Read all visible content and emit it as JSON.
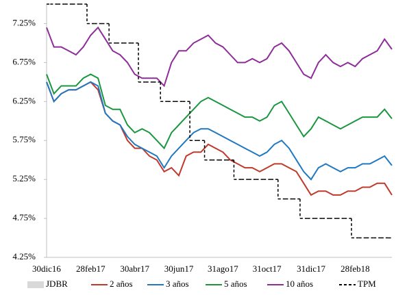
{
  "chart_data": {
    "type": "line",
    "categories": [
      "30dic16",
      null,
      null,
      null,
      null,
      null,
      "28feb17",
      null,
      null,
      null,
      null,
      null,
      "30abr17",
      null,
      null,
      null,
      null,
      null,
      "30jun17",
      null,
      null,
      null,
      null,
      null,
      "31ago17",
      null,
      null,
      null,
      null,
      null,
      "31oct17",
      null,
      null,
      null,
      null,
      null,
      "31dic17",
      null,
      null,
      null,
      null,
      null,
      "28feb18",
      null,
      null,
      null,
      null,
      null
    ],
    "ylim": [
      4.25,
      7.5
    ],
    "yticks": [
      {
        "value": 4.25,
        "label": "4.25%"
      },
      {
        "value": 4.75,
        "label": "4.75%"
      },
      {
        "value": 5.25,
        "label": "5.25%"
      },
      {
        "value": 5.75,
        "label": "5.75%"
      },
      {
        "value": 6.25,
        "label": "6.25%"
      },
      {
        "value": 6.75,
        "label": "6.75%"
      },
      {
        "value": 7.25,
        "label": "7.25%"
      }
    ],
    "grid": false,
    "legend": "bottom",
    "series": [
      {
        "name": "JDBR",
        "color": "#d9d9d9",
        "kind": "bar",
        "values": [
          null,
          null,
          null,
          null,
          null,
          null,
          null,
          null,
          null,
          null,
          null,
          null,
          null,
          null,
          null,
          null,
          null,
          null,
          null,
          null,
          null,
          null,
          null,
          null,
          null,
          null,
          null,
          null,
          null,
          null,
          null,
          null,
          null,
          null,
          null,
          null,
          null,
          null,
          null,
          null,
          null,
          null,
          null,
          null,
          null,
          null,
          null,
          null
        ]
      },
      {
        "name": "2 años",
        "color": "#c0392b",
        "values": [
          6.5,
          6.25,
          6.35,
          6.4,
          6.4,
          6.45,
          6.5,
          6.4,
          6.1,
          6.0,
          5.95,
          5.75,
          5.65,
          5.65,
          5.55,
          5.5,
          5.35,
          5.4,
          5.3,
          5.55,
          5.6,
          5.6,
          5.7,
          5.65,
          5.6,
          5.5,
          5.45,
          5.4,
          5.4,
          5.35,
          5.4,
          5.45,
          5.45,
          5.4,
          5.35,
          5.2,
          5.05,
          5.1,
          5.1,
          5.05,
          5.05,
          5.1,
          5.1,
          5.15,
          5.15,
          5.2,
          5.2,
          5.05
        ]
      },
      {
        "name": "3 años",
        "color": "#1f78c1",
        "values": [
          6.5,
          6.25,
          6.35,
          6.4,
          6.4,
          6.45,
          6.5,
          6.45,
          6.1,
          6.0,
          5.95,
          5.8,
          5.7,
          5.65,
          5.6,
          5.55,
          5.4,
          5.55,
          5.65,
          5.75,
          5.85,
          5.9,
          5.9,
          5.85,
          5.8,
          5.75,
          5.7,
          5.65,
          5.6,
          5.55,
          5.6,
          5.7,
          5.75,
          5.65,
          5.5,
          5.35,
          5.25,
          5.4,
          5.45,
          5.4,
          5.35,
          5.4,
          5.4,
          5.45,
          5.45,
          5.5,
          5.55,
          5.43
        ]
      },
      {
        "name": "5 años",
        "color": "#1a9641",
        "values": [
          6.6,
          6.35,
          6.45,
          6.45,
          6.45,
          6.55,
          6.6,
          6.55,
          6.2,
          6.15,
          6.15,
          5.95,
          5.85,
          5.9,
          5.85,
          5.75,
          5.65,
          5.85,
          5.95,
          6.05,
          6.15,
          6.25,
          6.3,
          6.25,
          6.2,
          6.15,
          6.1,
          6.05,
          6.05,
          6.0,
          6.05,
          6.2,
          6.25,
          6.1,
          5.95,
          5.8,
          5.9,
          6.05,
          6.0,
          5.95,
          5.9,
          5.95,
          6.0,
          6.05,
          6.05,
          6.05,
          6.15,
          6.03
        ]
      },
      {
        "name": "10 años",
        "color": "#8e2c9a",
        "values": [
          7.2,
          6.95,
          6.95,
          6.9,
          6.85,
          6.95,
          7.1,
          7.2,
          7.05,
          6.9,
          6.85,
          6.75,
          6.6,
          6.55,
          6.55,
          6.55,
          6.45,
          6.75,
          6.9,
          6.9,
          7.0,
          7.05,
          7.1,
          7.0,
          6.95,
          6.85,
          6.75,
          6.75,
          6.8,
          6.75,
          6.8,
          6.95,
          7.0,
          6.9,
          6.75,
          6.6,
          6.55,
          6.75,
          6.85,
          6.75,
          6.7,
          6.75,
          6.7,
          6.8,
          6.85,
          6.9,
          7.05,
          6.92
        ]
      },
      {
        "name": "TPM",
        "color": "#000000",
        "dash": true,
        "step": true,
        "values": [
          7.5,
          7.5,
          7.5,
          7.5,
          7.5,
          7.5,
          7.25,
          7.25,
          7.25,
          7.0,
          7.0,
          7.0,
          7.0,
          6.5,
          6.5,
          6.5,
          6.25,
          6.25,
          6.25,
          6.25,
          5.75,
          5.75,
          5.5,
          5.5,
          5.5,
          5.5,
          5.25,
          5.25,
          5.25,
          5.25,
          5.25,
          5.25,
          5.0,
          5.0,
          5.0,
          4.75,
          4.75,
          4.75,
          4.75,
          4.75,
          4.75,
          4.75,
          4.5,
          4.5,
          4.5,
          4.5,
          4.5,
          4.5
        ]
      }
    ]
  }
}
